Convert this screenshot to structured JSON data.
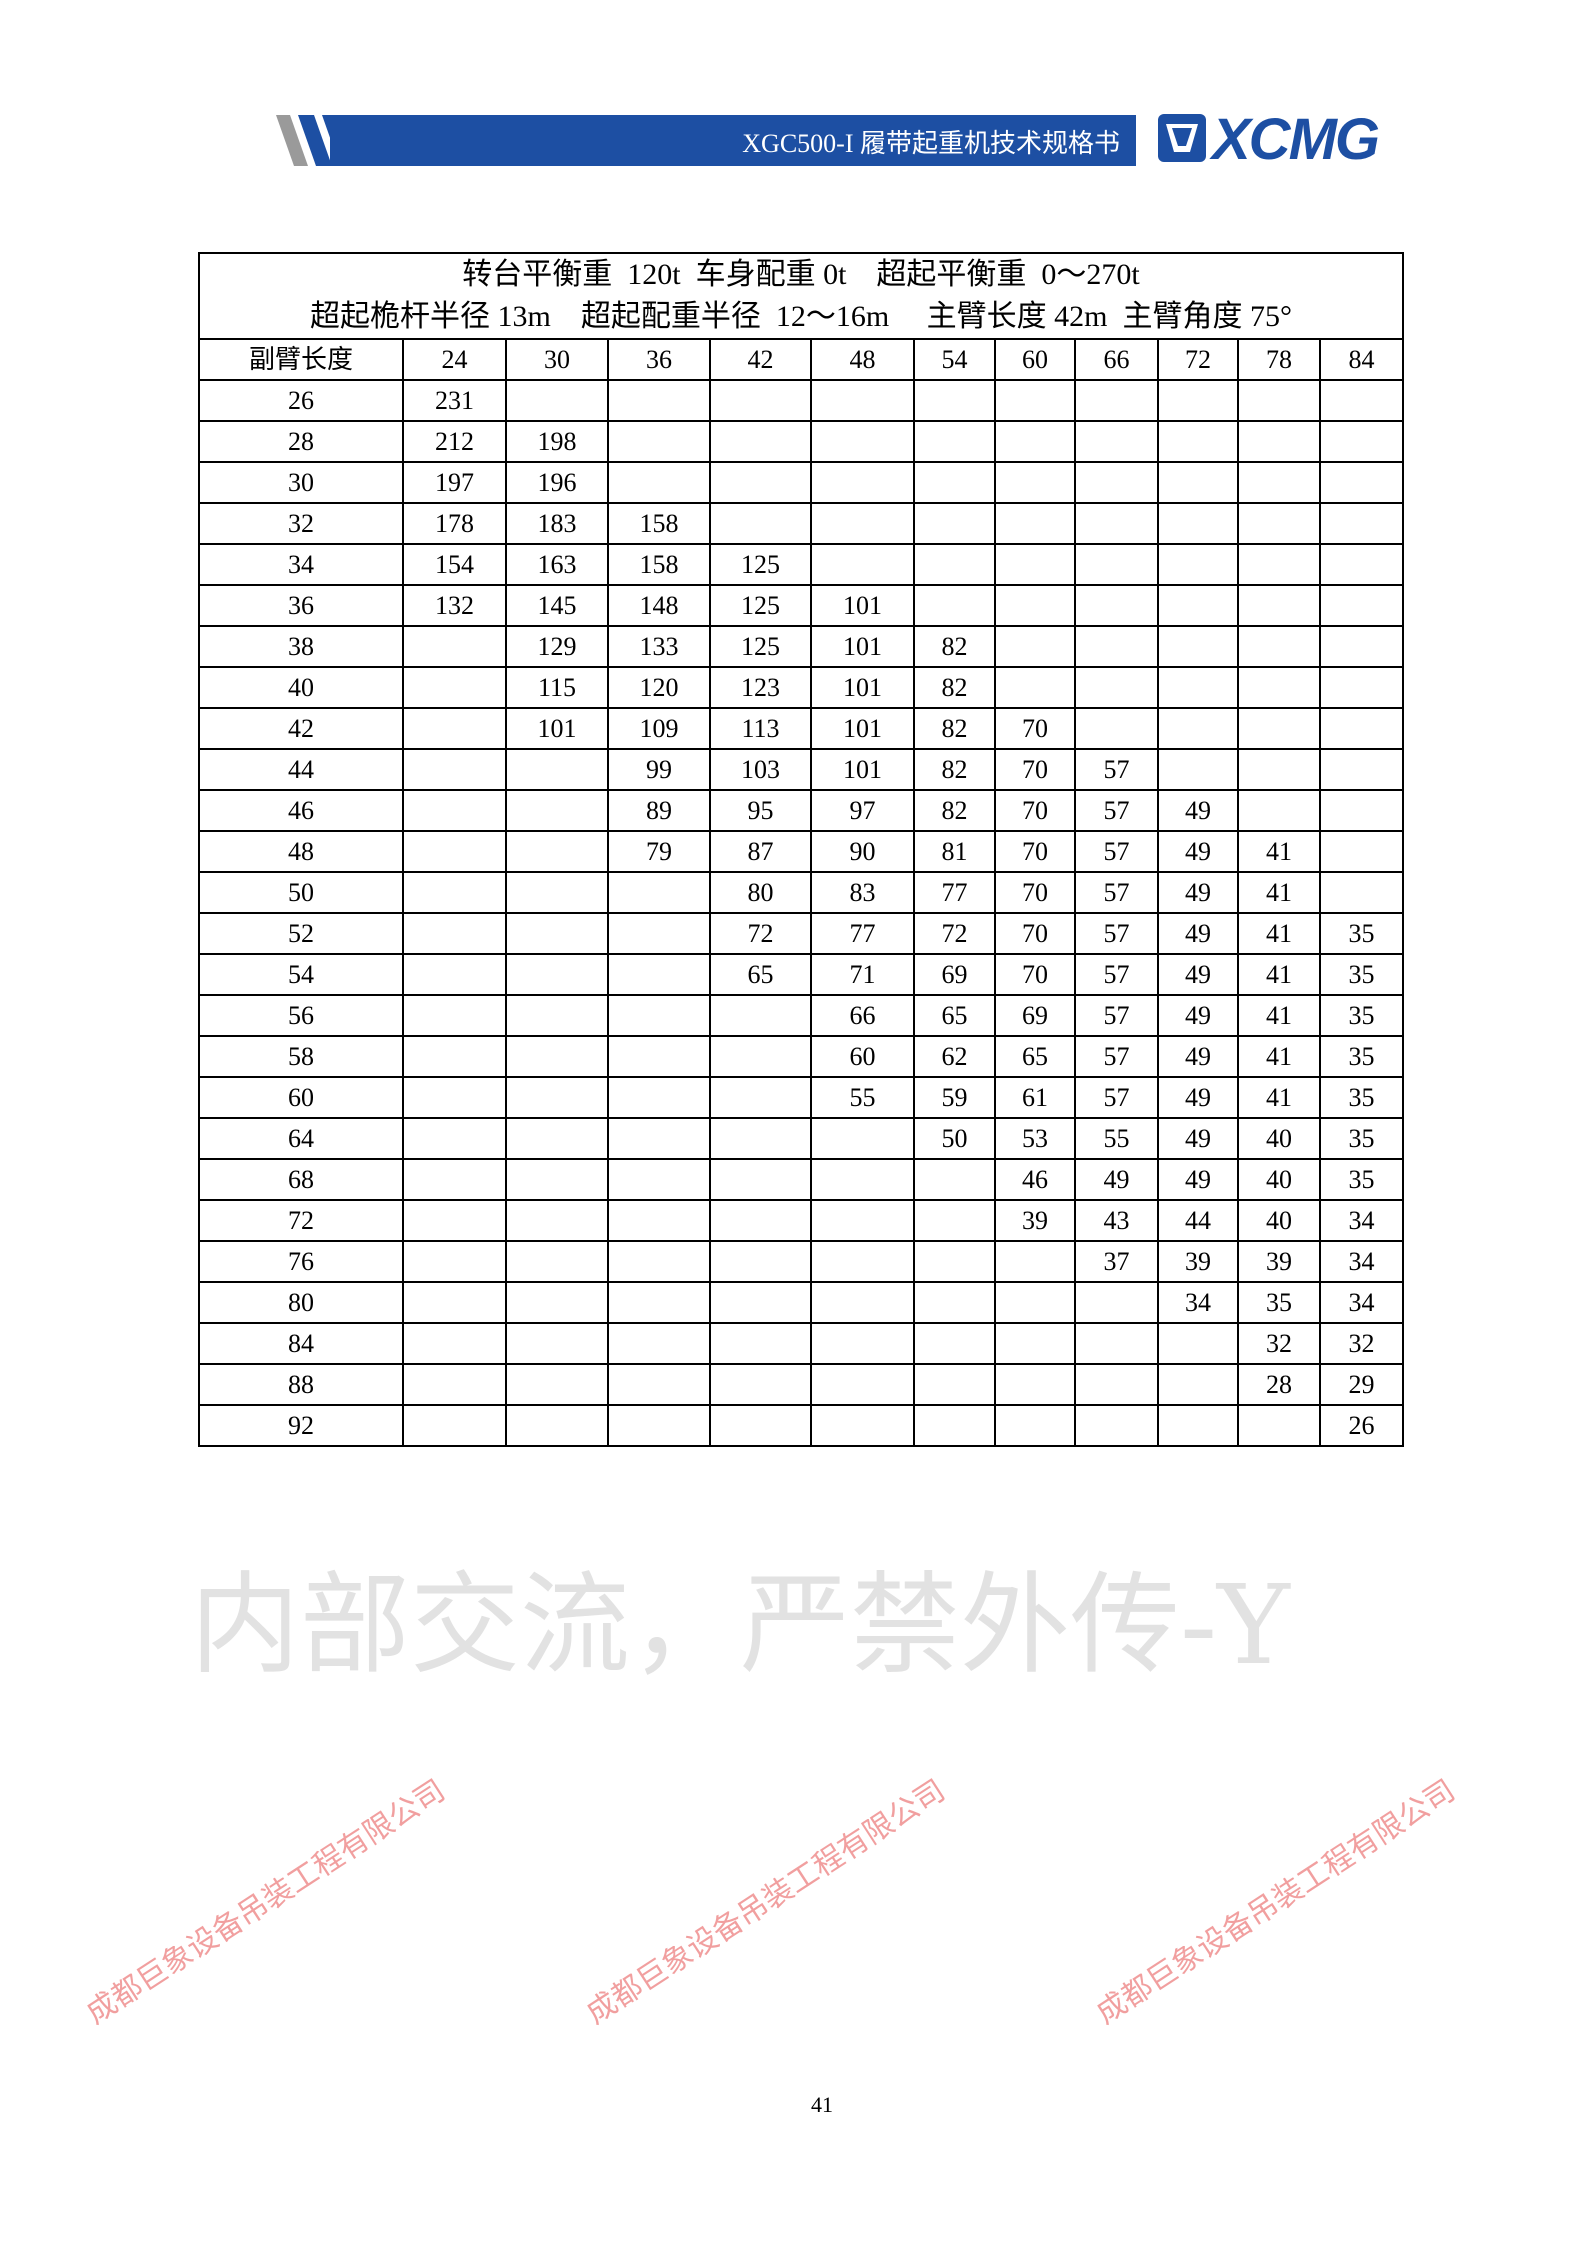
{
  "header": {
    "title": "XGC500-I 履带起重机技术规格书",
    "logo_text": "XCMG",
    "brand_color": "#1d4fa3"
  },
  "table": {
    "title_line1": "转台平衡重  120t  车身配重 0t    超起平衡重  0～270t",
    "title_line2": "超起桅杆半径 13m    超起配重半径  12～16m     主臂长度 42m  主臂角度 75°",
    "header_label": "副臂长度",
    "columns": [
      "24",
      "30",
      "36",
      "42",
      "48",
      "54",
      "60",
      "66",
      "72",
      "78",
      "84"
    ],
    "rows": [
      {
        "jib": "26",
        "values": [
          "231",
          "",
          "",
          "",
          "",
          "",
          "",
          "",
          "",
          "",
          ""
        ]
      },
      {
        "jib": "28",
        "values": [
          "212",
          "198",
          "",
          "",
          "",
          "",
          "",
          "",
          "",
          "",
          ""
        ]
      },
      {
        "jib": "30",
        "values": [
          "197",
          "196",
          "",
          "",
          "",
          "",
          "",
          "",
          "",
          "",
          ""
        ]
      },
      {
        "jib": "32",
        "values": [
          "178",
          "183",
          "158",
          "",
          "",
          "",
          "",
          "",
          "",
          "",
          ""
        ]
      },
      {
        "jib": "34",
        "values": [
          "154",
          "163",
          "158",
          "125",
          "",
          "",
          "",
          "",
          "",
          "",
          ""
        ]
      },
      {
        "jib": "36",
        "values": [
          "132",
          "145",
          "148",
          "125",
          "101",
          "",
          "",
          "",
          "",
          "",
          ""
        ]
      },
      {
        "jib": "38",
        "values": [
          "",
          "129",
          "133",
          "125",
          "101",
          "82",
          "",
          "",
          "",
          "",
          ""
        ]
      },
      {
        "jib": "40",
        "values": [
          "",
          "115",
          "120",
          "123",
          "101",
          "82",
          "",
          "",
          "",
          "",
          ""
        ]
      },
      {
        "jib": "42",
        "values": [
          "",
          "101",
          "109",
          "113",
          "101",
          "82",
          "70",
          "",
          "",
          "",
          ""
        ]
      },
      {
        "jib": "44",
        "values": [
          "",
          "",
          "99",
          "103",
          "101",
          "82",
          "70",
          "57",
          "",
          "",
          ""
        ]
      },
      {
        "jib": "46",
        "values": [
          "",
          "",
          "89",
          "95",
          "97",
          "82",
          "70",
          "57",
          "49",
          "",
          ""
        ]
      },
      {
        "jib": "48",
        "values": [
          "",
          "",
          "79",
          "87",
          "90",
          "81",
          "70",
          "57",
          "49",
          "41",
          ""
        ]
      },
      {
        "jib": "50",
        "values": [
          "",
          "",
          "",
          "80",
          "83",
          "77",
          "70",
          "57",
          "49",
          "41",
          ""
        ]
      },
      {
        "jib": "52",
        "values": [
          "",
          "",
          "",
          "72",
          "77",
          "72",
          "70",
          "57",
          "49",
          "41",
          "35"
        ]
      },
      {
        "jib": "54",
        "values": [
          "",
          "",
          "",
          "65",
          "71",
          "69",
          "70",
          "57",
          "49",
          "41",
          "35"
        ]
      },
      {
        "jib": "56",
        "values": [
          "",
          "",
          "",
          "",
          "66",
          "65",
          "69",
          "57",
          "49",
          "41",
          "35"
        ]
      },
      {
        "jib": "58",
        "values": [
          "",
          "",
          "",
          "",
          "60",
          "62",
          "65",
          "57",
          "49",
          "41",
          "35"
        ]
      },
      {
        "jib": "60",
        "values": [
          "",
          "",
          "",
          "",
          "55",
          "59",
          "61",
          "57",
          "49",
          "41",
          "35"
        ]
      },
      {
        "jib": "64",
        "values": [
          "",
          "",
          "",
          "",
          "",
          "50",
          "53",
          "55",
          "49",
          "40",
          "35"
        ]
      },
      {
        "jib": "68",
        "values": [
          "",
          "",
          "",
          "",
          "",
          "",
          "46",
          "49",
          "49",
          "40",
          "35"
        ]
      },
      {
        "jib": "72",
        "values": [
          "",
          "",
          "",
          "",
          "",
          "",
          "39",
          "43",
          "44",
          "40",
          "34"
        ]
      },
      {
        "jib": "76",
        "values": [
          "",
          "",
          "",
          "",
          "",
          "",
          "",
          "37",
          "39",
          "39",
          "34"
        ]
      },
      {
        "jib": "80",
        "values": [
          "",
          "",
          "",
          "",
          "",
          "",
          "",
          "",
          "34",
          "35",
          "34"
        ]
      },
      {
        "jib": "84",
        "values": [
          "",
          "",
          "",
          "",
          "",
          "",
          "",
          "",
          "",
          "32",
          "32"
        ]
      },
      {
        "jib": "88",
        "values": [
          "",
          "",
          "",
          "",
          "",
          "",
          "",
          "",
          "",
          "28",
          "29"
        ]
      },
      {
        "jib": "92",
        "values": [
          "",
          "",
          "",
          "",
          "",
          "",
          "",
          "",
          "",
          "",
          "26"
        ]
      }
    ]
  },
  "page_number": "41",
  "watermarks": {
    "company": "成都巨象设备吊装工程有限公司",
    "internal": "内部交流，严禁外传-Y",
    "company_color": "#e65050"
  }
}
